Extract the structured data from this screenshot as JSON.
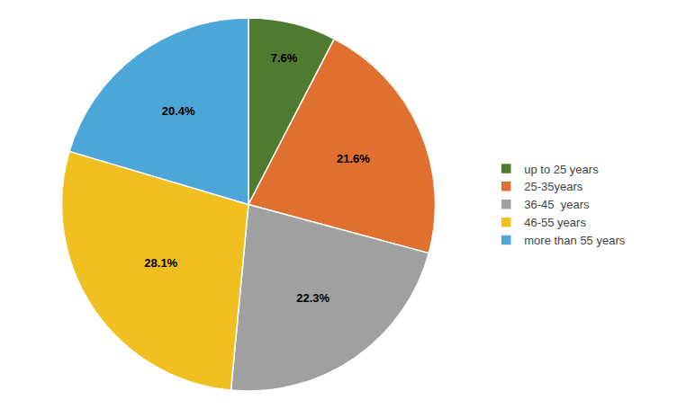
{
  "chart_data": {
    "type": "pie",
    "categories": [
      "up to 25 years",
      "25-35years",
      "36-45  years",
      "46-55 years",
      "more than 55 years"
    ],
    "values": [
      7.6,
      21.6,
      22.3,
      28.1,
      20.4
    ],
    "value_labels": [
      "7.6%",
      "21.6%",
      "22.3%",
      "28.1%",
      "20.4%"
    ],
    "colors": [
      "#4e7b2f",
      "#e07030",
      "#a0a0a0",
      "#f0c020",
      "#4da6d8"
    ],
    "data_labels": true,
    "legend": "right"
  }
}
